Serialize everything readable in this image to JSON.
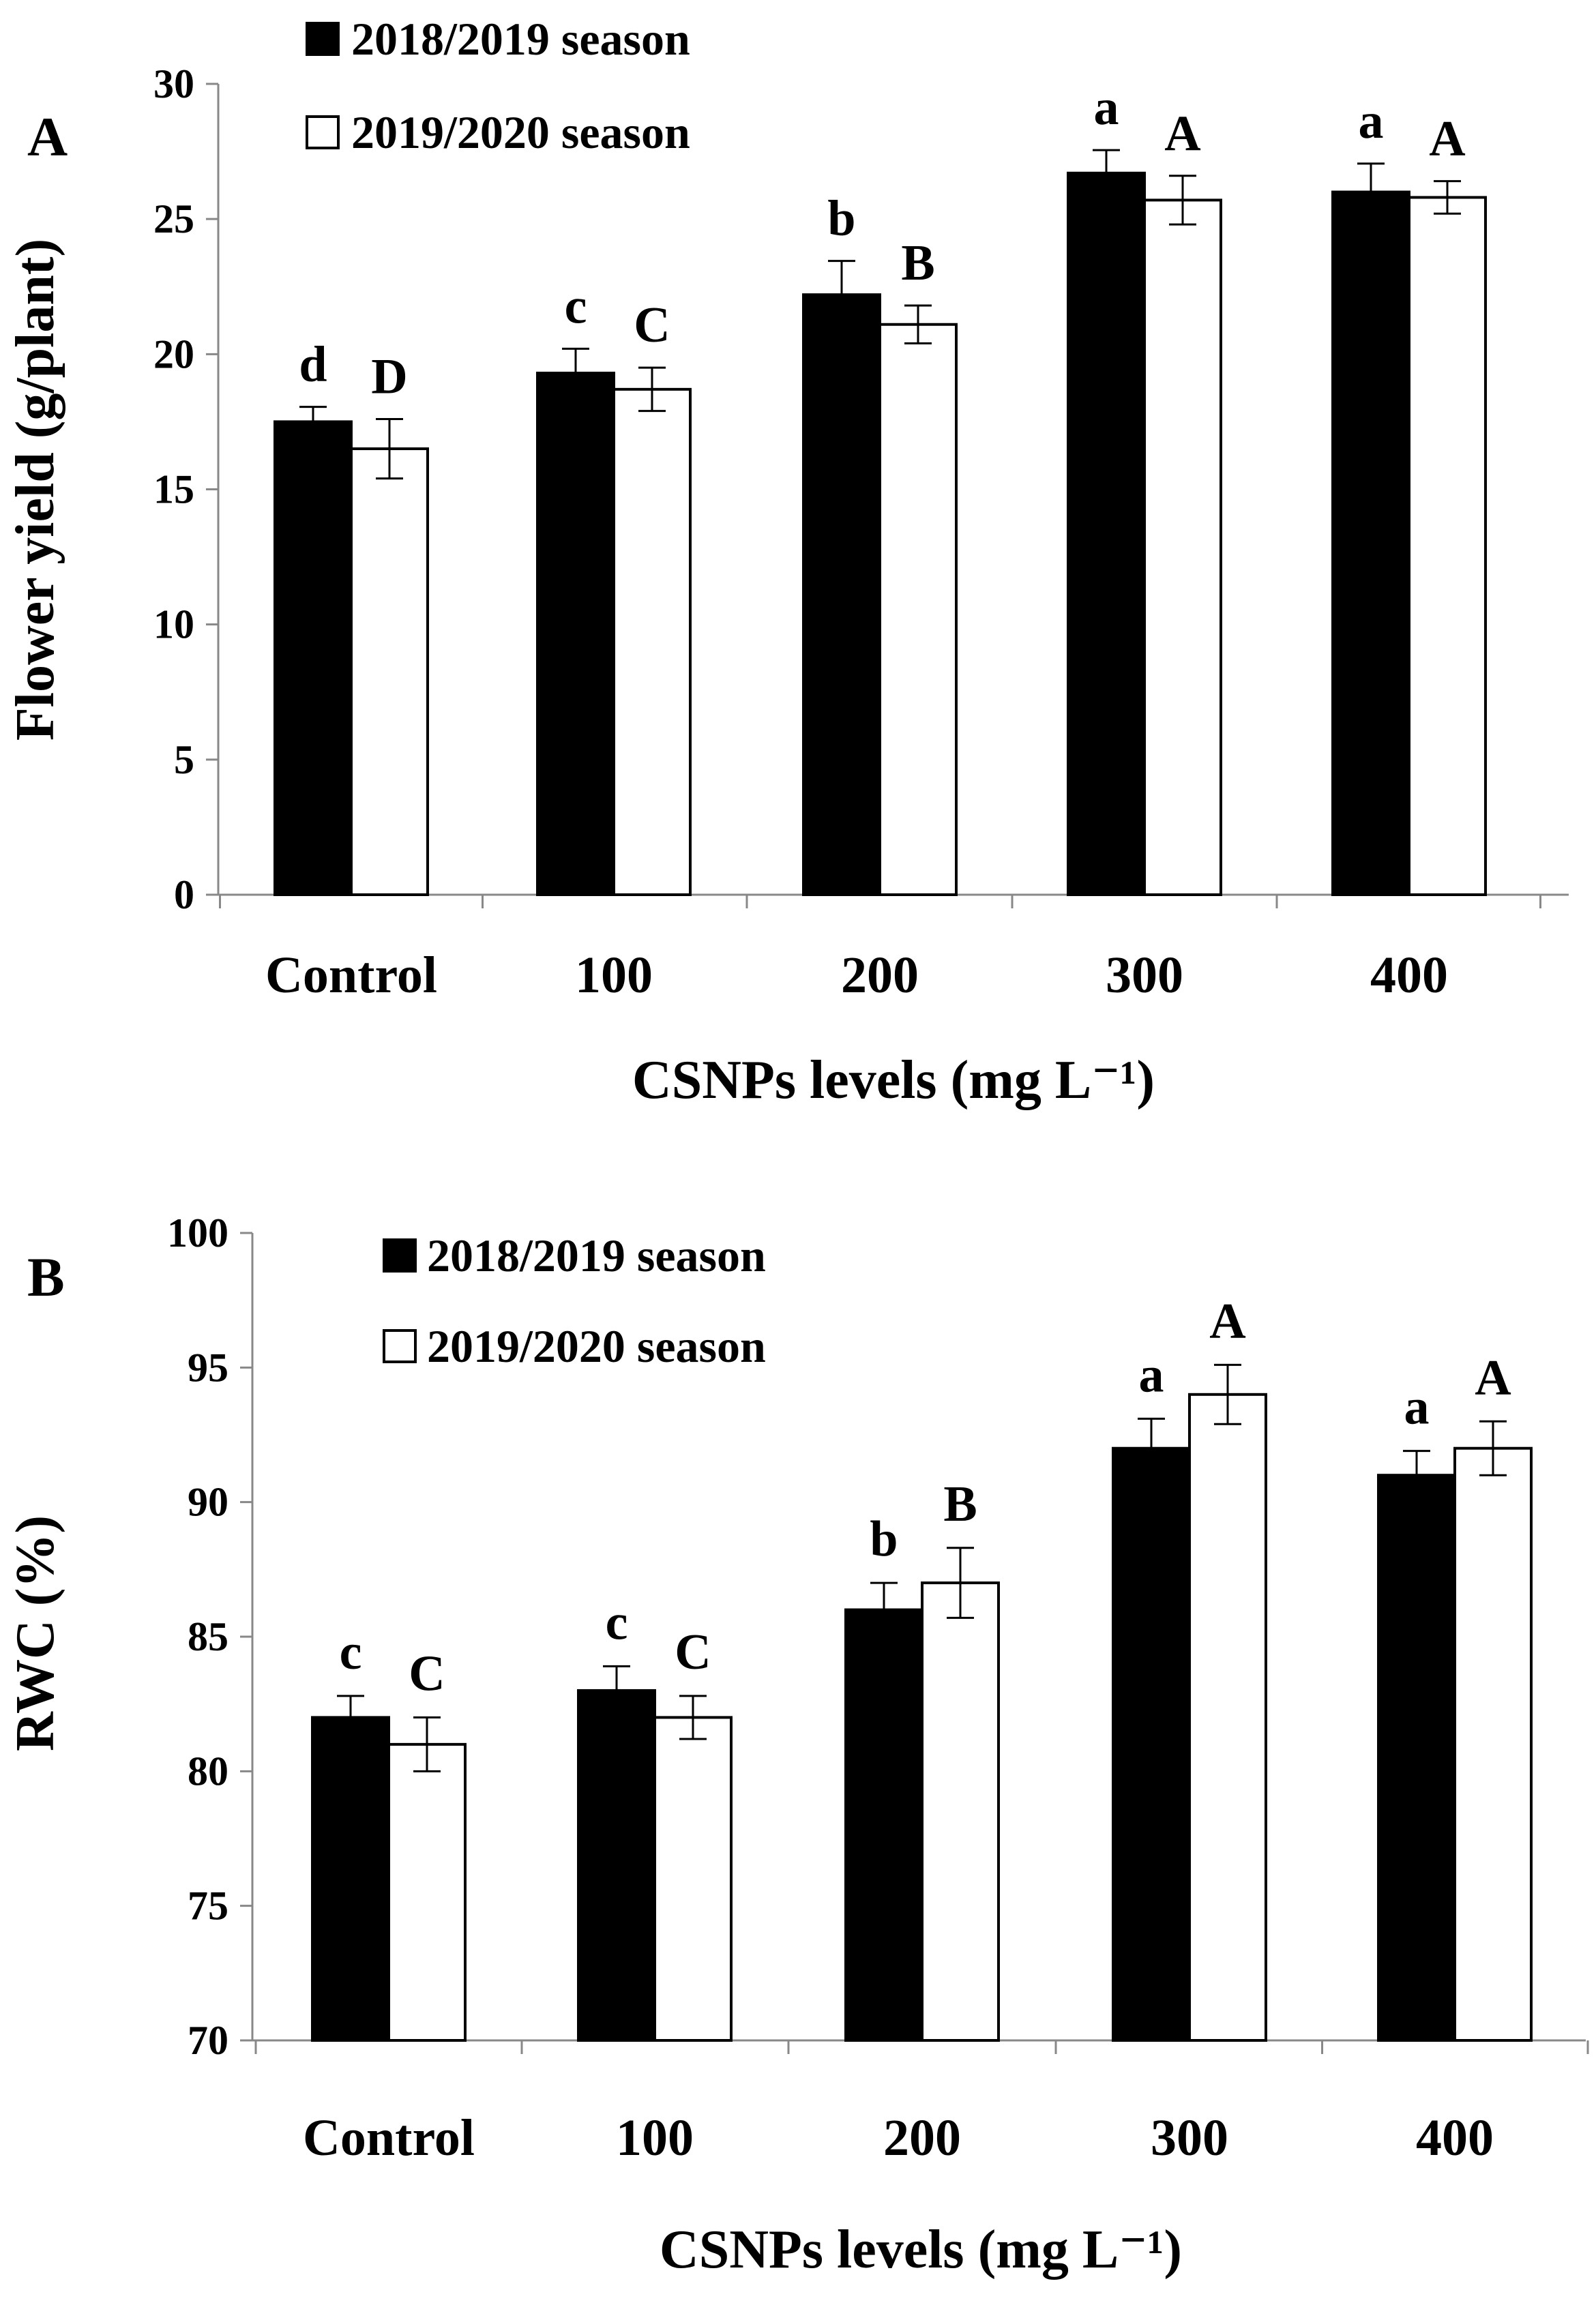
{
  "chart_data": [
    {
      "panel_label": "A",
      "type": "bar",
      "title": "",
      "xlabel": "CSNPs levels (mg L⁻¹)",
      "ylabel": "Flower yield (g/plant)",
      "ylim": [
        0,
        30
      ],
      "yticks": [
        0,
        5,
        10,
        15,
        20,
        25,
        30
      ],
      "legend_position": "top-left",
      "categories": [
        "Control",
        "100",
        "200",
        "300",
        "400"
      ],
      "series": [
        {
          "name": "2018/2019 season",
          "fill": "#000000",
          "values": [
            17.5,
            19.3,
            22.2,
            26.7,
            26.0
          ],
          "errors": [
            0.55,
            0.9,
            1.25,
            0.85,
            1.05
          ],
          "letters": [
            "d",
            "c",
            "b",
            "a",
            "a"
          ]
        },
        {
          "name": "2019/2020 season",
          "fill": "#ffffff",
          "values": [
            16.5,
            18.7,
            21.1,
            25.7,
            25.8
          ],
          "errors": [
            1.1,
            0.8,
            0.7,
            0.9,
            0.6
          ],
          "letters": [
            "D",
            "C",
            "B",
            "A",
            "A"
          ]
        }
      ]
    },
    {
      "panel_label": "B",
      "type": "bar",
      "title": "",
      "xlabel": "CSNPs levels (mg L⁻¹)",
      "ylabel": "RWC (%)",
      "ylim": [
        70,
        100
      ],
      "yticks": [
        70,
        75,
        80,
        85,
        90,
        95,
        100
      ],
      "legend_position": "top-left",
      "categories": [
        "Control",
        "100",
        "200",
        "300",
        "400"
      ],
      "series": [
        {
          "name": "2018/2019 season",
          "fill": "#000000",
          "values": [
            82,
            83,
            86,
            92,
            91
          ],
          "errors": [
            0.8,
            0.9,
            1.0,
            1.1,
            0.9
          ],
          "letters": [
            "c",
            "c",
            "b",
            "a",
            "a"
          ]
        },
        {
          "name": "2019/2020 season",
          "fill": "#ffffff",
          "values": [
            81,
            82,
            87,
            94,
            92
          ],
          "errors": [
            1.0,
            0.8,
            1.3,
            1.1,
            1.0
          ],
          "letters": [
            "C",
            "C",
            "B",
            "A",
            "A"
          ]
        }
      ]
    }
  ]
}
